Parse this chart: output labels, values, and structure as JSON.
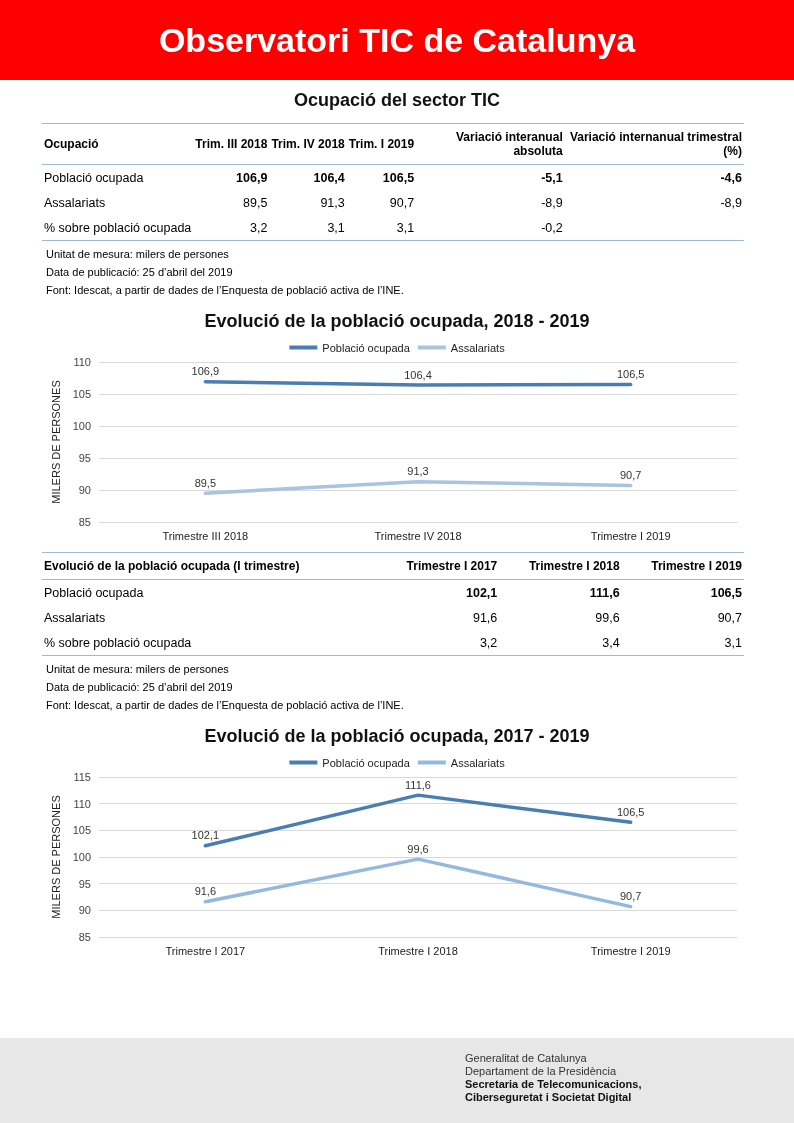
{
  "chart_data": [
    {
      "type": "other",
      "title": "Observatori TIC de Catalunya"
    },
    {
      "type": "other",
      "title": "Ocupació del sector TIC",
      "categories": [
        "Ocupació",
        "Trim. III 2018",
        "Trim. IV 2018",
        "Trim. I 2019",
        "Variació interanual absoluta",
        "Variació internanual trimestral (%)"
      ],
      "y_categories": [
        "Població ocupada",
        "Assalariats",
        "% sobre població ocupada"
      ],
      "cell_labels": [
        [
          "106,9",
          "106,4",
          "106,5",
          "-5,1",
          "-4,6"
        ],
        [
          "89,5",
          "91,3",
          "90,7",
          "-8,9",
          "-8,9"
        ],
        [
          "3,2",
          "3,1",
          "3,1",
          "-0,2",
          null
        ]
      ],
      "annotations": [
        "Unitat de mesura: milers de persones",
        "Data de publicació: 25 d’abril del 2019",
        "Font: Idescat, a partir de dades de l’Enquesta de població activa de l’INE."
      ]
    },
    {
      "type": "line",
      "title": "Evolució de la població ocupada, 2018 - 2019",
      "ylabel": "MILERS DE PERSONES",
      "categories": [
        "Trimestre III 2018",
        "Trimestre IV 2018",
        "Trimestre I 2019"
      ],
      "series": [
        {
          "name": "Població ocupada",
          "color": "#4a7eb3",
          "values": [
            106.9,
            106.4,
            106.5
          ],
          "value_labels": [
            "106,9",
            "106,4",
            "106,5"
          ]
        },
        {
          "name": "Assalariats",
          "color": "#a9c3e0",
          "values": [
            89.5,
            91.3,
            90.7
          ],
          "value_labels": [
            "89,5",
            "91,3",
            "90,7"
          ]
        }
      ],
      "ylim": [
        85,
        110
      ],
      "yticks": [
        85,
        90,
        95,
        100,
        105,
        110
      ],
      "grid": "y",
      "legend": "top",
      "marker": "none",
      "line_style": "solid"
    },
    {
      "type": "other",
      "categories": [
        "Evolució de la població ocupada (I trimestre)",
        "Trimestre I 2017",
        "Trimestre I 2018",
        "Trimestre I 2019"
      ],
      "y_categories": [
        "Població ocupada",
        "Assalariats",
        "% sobre població ocupada"
      ],
      "cell_labels": [
        [
          "102,1",
          "111,6",
          "106,5"
        ],
        [
          "91,6",
          "99,6",
          "90,7"
        ],
        [
          "3,2",
          "3,4",
          "3,1"
        ]
      ],
      "annotations": [
        "Unitat de mesura: milers de persones",
        "Data de publicació: 25 d’abril del 2019",
        "Font: Idescat, a partir de dades de l’Enquesta de població activa de l’INE."
      ]
    },
    {
      "type": "line",
      "title": "Evolució de la població ocupada, 2017 - 2019",
      "ylabel": "MILERS DE PERSONES",
      "categories": [
        "Trimestre I 2017",
        "Trimestre I 2018",
        "Trimestre I 2019"
      ],
      "series": [
        {
          "name": "Població ocupada",
          "color": "#4a7eb3",
          "values": [
            102.1,
            111.6,
            106.5
          ],
          "value_labels": [
            "102,1",
            "111,6",
            "106,5"
          ]
        },
        {
          "name": "Assalariats",
          "color": "#95b8de",
          "values": [
            91.6,
            99.6,
            90.7
          ],
          "value_labels": [
            "91,6",
            "99,6",
            "90,7"
          ]
        }
      ],
      "ylim": [
        85,
        115
      ],
      "yticks": [
        85,
        90,
        95,
        100,
        105,
        110,
        115
      ],
      "grid": "y",
      "legend": "top",
      "marker": "none",
      "line_style": "solid"
    },
    {
      "type": "other",
      "annotations": [
        "Generalitat de Catalunya",
        "Departament de la Presidència",
        "Secretaria de Telecomunicacions,",
        "Ciberseguretat i Societat Digital"
      ]
    }
  ]
}
